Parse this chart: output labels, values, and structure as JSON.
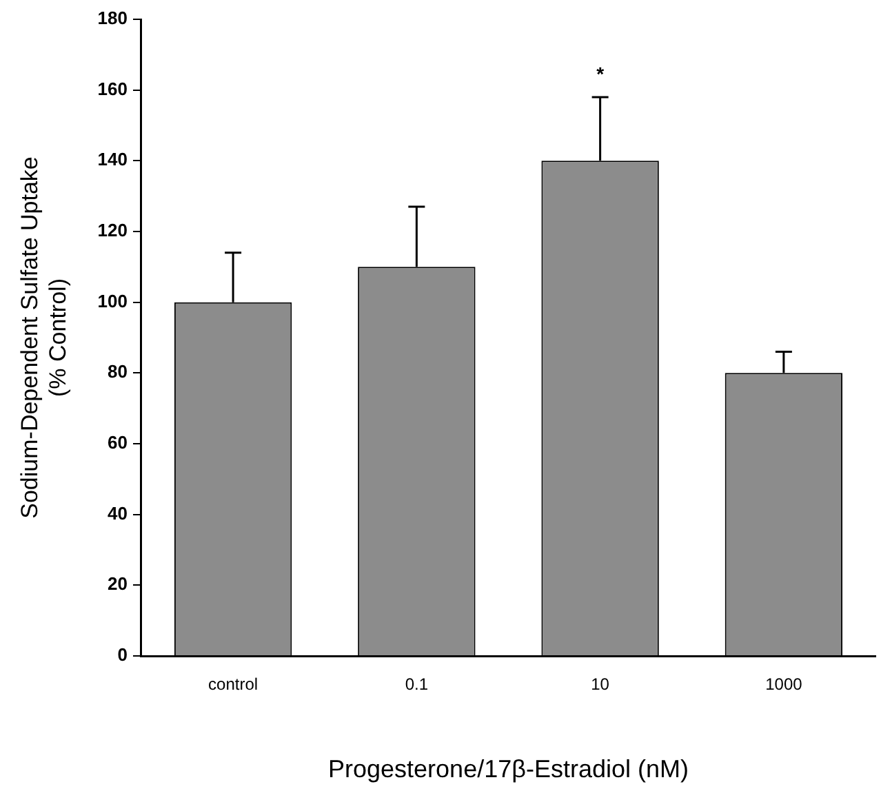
{
  "chart_data": {
    "type": "bar",
    "xlabel": "Progesterone/17β-Estradiol (nM)",
    "ylabel": "Sodium-Dependent Sulfate Uptake\n(% Control)",
    "categories": [
      "control",
      "0.1",
      "10",
      "1000"
    ],
    "values": [
      100,
      110,
      140,
      80
    ],
    "errors": [
      [
        100,
        114
      ],
      [
        110,
        127
      ],
      [
        140,
        158
      ],
      [
        80,
        86
      ]
    ],
    "color": "#8c8c8c",
    "ylim": [
      0,
      180
    ],
    "yticks": [
      0,
      20,
      40,
      60,
      80,
      100,
      120,
      140,
      160,
      180
    ],
    "grid": false,
    "legend": false,
    "annotations": [
      {
        "text": "*",
        "x": "10",
        "y": 158
      }
    ]
  }
}
